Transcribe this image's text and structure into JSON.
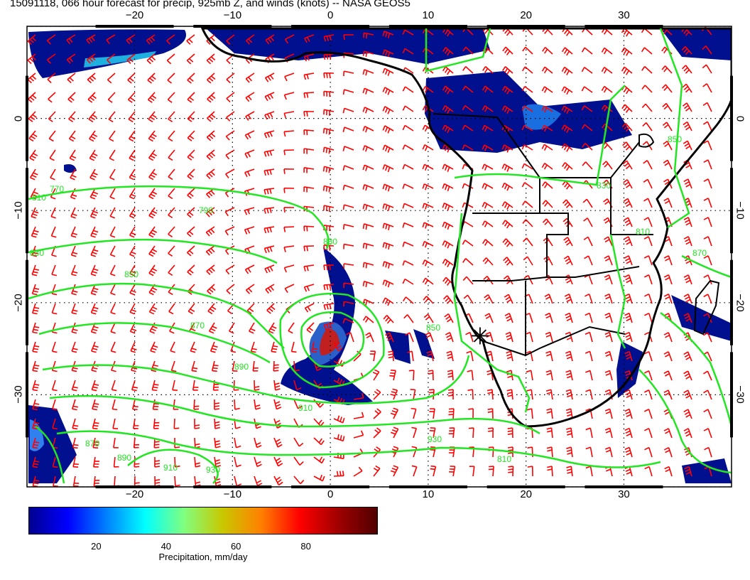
{
  "title": "15091118, 066 hour forecast for precip, 925mb Z, and winds (knots) -- NASA GEOS5",
  "map": {
    "lon_range": [
      -31,
      41
    ],
    "lat_range": [
      -40,
      10
    ],
    "lon_ticks": [
      -20,
      -10,
      0,
      10,
      20,
      30
    ],
    "lat_ticks": [
      0,
      -10,
      -20,
      -30
    ],
    "top_tick_labels": [
      "−20",
      "−10",
      "0",
      "10",
      "20",
      "30"
    ],
    "bottom_tick_labels": [
      "−20",
      "−10",
      "0",
      "10",
      "20",
      "30"
    ],
    "left_tick_labels": [
      "0",
      "−10",
      "−20",
      "−30"
    ],
    "right_tick_labels": [
      "0",
      "−10",
      "−20",
      "−30"
    ],
    "grid": "dotted",
    "contour_color": "#22e622",
    "wind_barb_color": "#ff0000",
    "coastline_color": "#000000",
    "contour_labels": [
      "810",
      "830",
      "850",
      "870",
      "890",
      "910",
      "930",
      "810",
      "830",
      "850",
      "870",
      "890",
      "910",
      "930",
      "870",
      "850",
      "830",
      "810",
      "770",
      "790"
    ],
    "features": {
      "low_center": {
        "lon": 0.5,
        "lat": -24,
        "name": "low-pressure-center"
      },
      "marker": {
        "lon": 15.3,
        "lat": -23.6,
        "name": "star-marker"
      }
    }
  },
  "colorbar": {
    "ticks": [
      "20",
      "40",
      "60",
      "80"
    ],
    "tick_values": [
      20,
      40,
      60,
      80
    ],
    "range": [
      0,
      100
    ],
    "label": "Precipitation, mm/day",
    "colors": [
      "#00008f",
      "#0000ff",
      "#0080ff",
      "#00ffff",
      "#80ff80",
      "#c8c800",
      "#ff8000",
      "#ff0000",
      "#a00000",
      "#500000"
    ]
  }
}
